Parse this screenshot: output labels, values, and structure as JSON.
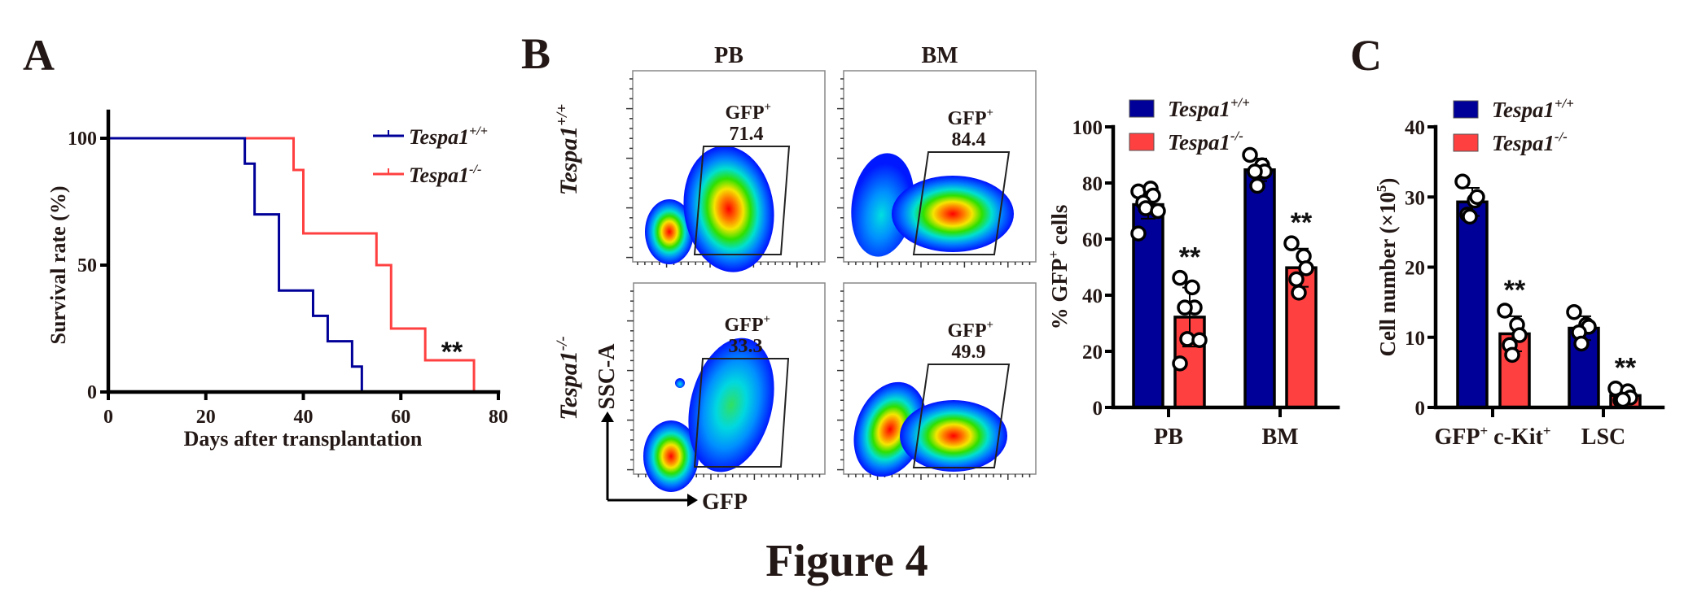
{
  "figure_title": "Figure 4",
  "colors": {
    "wt": "#000099",
    "ko": "#ff4040",
    "text": "#231815"
  },
  "panel_A": {
    "letter": "A",
    "sig": "**"
  },
  "panel_B": {
    "letter": "B",
    "flow": {
      "col_headers": [
        "PB",
        "BM"
      ],
      "row_labels": [
        {
          "base": "Tespa1",
          "sup": "+/+"
        },
        {
          "base": "Tespa1",
          "sup": "-/-"
        }
      ],
      "y_axis_label": "SSC-A",
      "x_axis_label": "GFP",
      "gates": [
        {
          "row": 0,
          "col": 0,
          "label": "GFP",
          "label_sup": "+",
          "value": "71.4"
        },
        {
          "row": 0,
          "col": 1,
          "label": "GFP",
          "label_sup": "+",
          "value": "84.4"
        },
        {
          "row": 1,
          "col": 0,
          "label": "GFP",
          "label_sup": "+",
          "value": "33.3"
        },
        {
          "row": 1,
          "col": 1,
          "label": "GFP",
          "label_sup": "+",
          "value": "49.9"
        }
      ]
    }
  },
  "panel_C": {
    "letter": "C"
  },
  "chart_data": [
    {
      "id": "A",
      "type": "line",
      "subtype": "kaplan-meier step",
      "title": "",
      "xlabel": "Days after transplantation",
      "ylabel": "Survival rate (%)",
      "xlim": [
        0,
        80
      ],
      "ylim": [
        0,
        100
      ],
      "xticks": [
        0,
        20,
        40,
        60,
        80
      ],
      "yticks": [
        0,
        50,
        100
      ],
      "legend_position": "top-right",
      "annotation": "**",
      "series": [
        {
          "name": "Tespa1",
          "name_sup": "+/+",
          "color_key": "wt",
          "steps": [
            [
              0,
              100
            ],
            [
              28,
              90
            ],
            [
              30,
              70
            ],
            [
              35,
              40
            ],
            [
              42,
              30
            ],
            [
              45,
              20
            ],
            [
              50,
              10
            ],
            [
              52,
              0
            ]
          ]
        },
        {
          "name": "Tespa1",
          "name_sup": "-/-",
          "color_key": "ko",
          "steps": [
            [
              0,
              100
            ],
            [
              38,
              87.5
            ],
            [
              40,
              62.5
            ],
            [
              55,
              50
            ],
            [
              58,
              25
            ],
            [
              65,
              12.5
            ],
            [
              75,
              0
            ]
          ]
        }
      ]
    },
    {
      "id": "B",
      "type": "bar",
      "title": "",
      "xlabel": "",
      "ylabel": "% GFP+ cells",
      "ylabel_parts": {
        "pre": "% GFP",
        "sup": "+",
        "post": " cells"
      },
      "ylim": [
        0,
        100
      ],
      "yticks": [
        0,
        20,
        40,
        60,
        80,
        100
      ],
      "categories": [
        "PB",
        "BM"
      ],
      "legend_position": "top",
      "series": [
        {
          "name": "Tespa1",
          "name_sup": "+/+",
          "color_key": "wt",
          "values": [
            72.3,
            84.7
          ],
          "sd": [
            5.0,
            4.0
          ],
          "points": [
            [
              77,
              78,
              75.5,
              73,
              71,
              70,
              62
            ],
            [
              90,
              86.3,
              84.1,
              84.1,
              79
            ]
          ]
        },
        {
          "name": "Tespa1",
          "name_sup": "-/-",
          "color_key": "ko",
          "values": [
            32.2,
            49.8
          ],
          "sd": [
            10.5,
            6.8
          ],
          "points": [
            [
              46.2,
              42.8,
              35.6,
              35.6,
              24.4,
              24,
              15.7
            ],
            [
              58.5,
              53.9,
              49.6,
              45.7,
              40.9
            ]
          ],
          "sig": [
            "**",
            "**"
          ]
        }
      ]
    },
    {
      "id": "C",
      "type": "bar",
      "title": "",
      "xlabel": "",
      "ylabel": "Cell number (×10^5)",
      "ylabel_parts": {
        "pre": "Cell number (×10",
        "sup": "5",
        "post": ")"
      },
      "ylim": [
        0,
        40
      ],
      "yticks": [
        0,
        10,
        20,
        30,
        40
      ],
      "categories": [
        "GFP+ c-Kit+",
        "LSC"
      ],
      "category_parts": [
        [
          {
            "t": "GFP"
          },
          {
            "t": "+",
            "sup": true
          },
          {
            "t": " c-Kit"
          },
          {
            "t": "+",
            "sup": true
          }
        ],
        [
          {
            "t": "LSC"
          }
        ]
      ],
      "legend_position": "top",
      "series": [
        {
          "name": "Tespa1",
          "name_sup": "+/+",
          "color_key": "wt",
          "values": [
            29.3,
            11.3
          ],
          "sd": [
            2.0,
            1.7
          ],
          "points": [
            [
              32.2,
              29.5,
              30.0,
              27.5,
              27.2
            ],
            [
              13.6,
              11.8,
              11.5,
              10.7,
              9.1
            ]
          ]
        },
        {
          "name": "Tespa1",
          "name_sup": "-/-",
          "color_key": "ko",
          "values": [
            10.5,
            1.7
          ],
          "sd": [
            2.5,
            0.7
          ],
          "points": [
            [
              13.8,
              11.8,
              10.3,
              8.9,
              7.5
            ],
            [
              2.7,
              2.3,
              1.4,
              1.0,
              1.1
            ]
          ],
          "sig": [
            "**",
            "**"
          ]
        }
      ]
    }
  ]
}
